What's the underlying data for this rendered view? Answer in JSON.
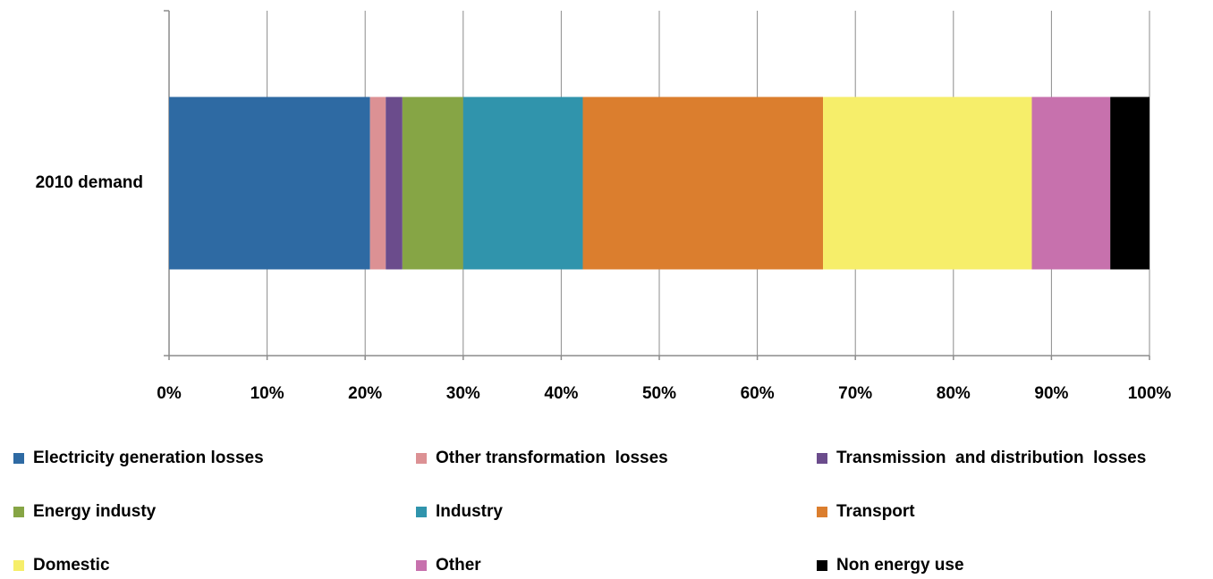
{
  "chart_data": {
    "type": "stacked-bar-horizontal",
    "categories": [
      "2010 demand"
    ],
    "series": [
      {
        "name": "Electricity generation losses",
        "color": "#2e6aa3",
        "values": [
          20.5
        ]
      },
      {
        "name": "Other transformation  losses",
        "color": "#dc9194",
        "values": [
          1.6
        ]
      },
      {
        "name": "Transmission  and distribution  losses",
        "color": "#6b4c8c",
        "values": [
          1.7
        ]
      },
      {
        "name": "Energy industy",
        "color": "#86a545",
        "values": [
          6.2
        ]
      },
      {
        "name": "Industry",
        "color": "#3094ac",
        "values": [
          12.2
        ]
      },
      {
        "name": "Transport",
        "color": "#db7e2e",
        "values": [
          24.5
        ]
      },
      {
        "name": "Domestic",
        "color": "#f6ee6a",
        "values": [
          21.3
        ]
      },
      {
        "name": "Other",
        "color": "#c771ad",
        "values": [
          8.0
        ]
      },
      {
        "name": "Non energy use",
        "color": "#000000",
        "values": [
          4.0
        ]
      }
    ],
    "xlim": [
      0,
      100
    ],
    "xticks": [
      {
        "value": 0,
        "label": "0%"
      },
      {
        "value": 10,
        "label": "10%"
      },
      {
        "value": 20,
        "label": "20%"
      },
      {
        "value": 30,
        "label": "30%"
      },
      {
        "value": 40,
        "label": "40%"
      },
      {
        "value": 50,
        "label": "50%"
      },
      {
        "value": 60,
        "label": "60%"
      },
      {
        "value": 70,
        "label": "70%"
      },
      {
        "value": 80,
        "label": "80%"
      },
      {
        "value": 90,
        "label": "90%"
      },
      {
        "value": 100,
        "label": "100%"
      }
    ],
    "grid": true,
    "legend": "bottom"
  }
}
